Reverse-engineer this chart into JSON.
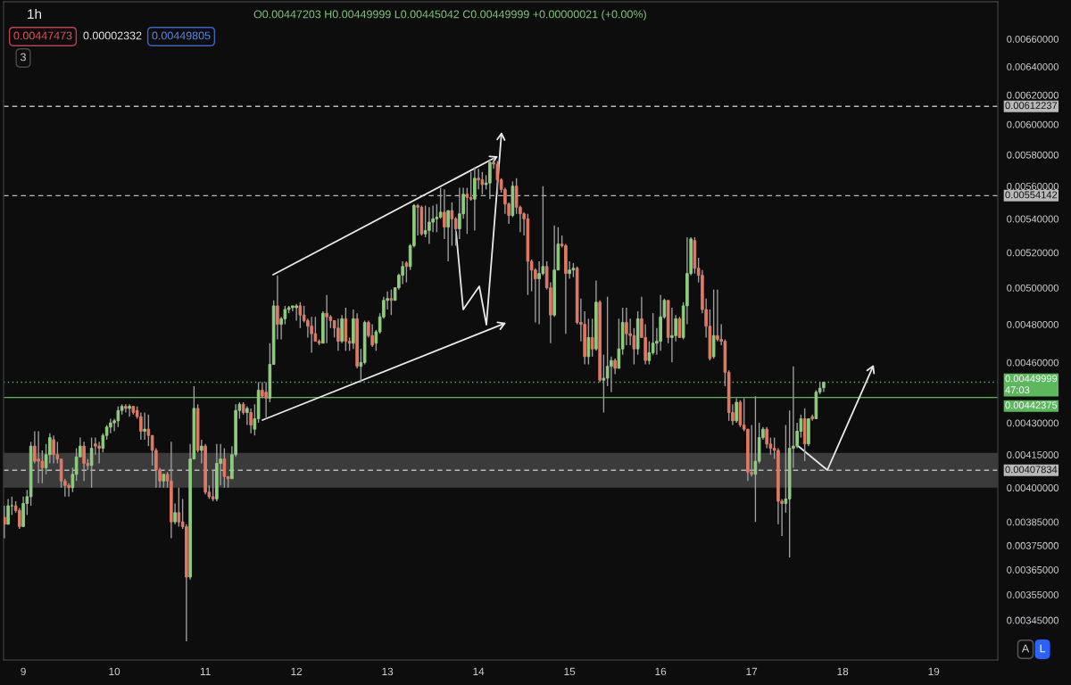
{
  "chart_data": {
    "type": "candlestick",
    "title": "1h",
    "subtitle": "O0.00447203 H0.00449999 L0.00445042 C0.00449999 +0.00000021 (+0.00%)",
    "x": [
      8.7917,
      8.8333,
      8.875,
      8.9167,
      8.9583,
      9,
      9.0417,
      9.0833,
      9.125,
      9.1667,
      9.2083,
      9.25,
      9.2917,
      9.3333,
      9.375,
      9.4167,
      9.4583,
      9.5,
      9.5417,
      9.5833,
      9.625,
      9.6667,
      9.7083,
      9.75,
      9.7917,
      9.8333,
      9.875,
      9.9167,
      9.9583,
      10,
      10.0417,
      10.0833,
      10.125,
      10.1667,
      10.2083,
      10.25,
      10.2917,
      10.3333,
      10.375,
      10.4167,
      10.4583,
      10.5,
      10.5417,
      10.5833,
      10.625,
      10.6667,
      10.7083,
      10.75,
      10.7917,
      10.8333,
      10.875,
      10.9167,
      10.9583,
      11,
      11.0417,
      11.0833,
      11.125,
      11.1667,
      11.2083,
      11.25,
      11.2917,
      11.3333,
      11.375,
      11.4167,
      11.4583,
      11.5,
      11.5417,
      11.5833,
      11.625,
      11.6667,
      11.7083,
      11.75,
      11.7917,
      11.8333,
      11.875,
      11.9167,
      11.9583,
      12,
      12.0417,
      12.0833,
      12.125,
      12.1667,
      12.2083,
      12.25,
      12.2917,
      12.3333,
      12.375,
      12.4167,
      12.4583,
      12.5,
      12.5417,
      12.5833,
      12.625,
      12.6667,
      12.7083,
      12.75,
      12.7917,
      12.8333,
      12.875,
      12.9167,
      12.9583,
      13,
      13.0417,
      13.0833,
      13.125,
      13.1667,
      13.2083,
      13.25,
      13.2917,
      13.3333,
      13.375,
      13.4167,
      13.4583,
      13.5,
      13.5417,
      13.5833,
      13.625,
      13.6667,
      13.7083,
      13.75,
      13.7917,
      13.8333,
      13.875,
      13.9167,
      13.9583,
      14,
      14.0417,
      14.0833,
      14.125,
      14.1667,
      14.2083,
      14.25,
      14.2917,
      14.3333,
      14.375,
      14.4167,
      14.4583,
      14.5,
      14.5417,
      14.5833,
      14.625,
      14.6667,
      14.7083,
      14.75,
      14.7917,
      14.8333,
      14.875,
      14.9167,
      14.9583,
      15,
      15.0417,
      15.0833,
      15.125,
      15.1667,
      15.2083,
      15.25,
      15.2917,
      15.3333,
      15.375,
      15.4167,
      15.4583,
      15.5,
      15.5417,
      15.5833,
      15.625,
      15.6667,
      15.7083,
      15.75,
      15.7917,
      15.8333,
      15.875,
      15.9167,
      15.9583,
      16,
      16.0417,
      16.0833,
      16.125,
      16.1667,
      16.2083,
      16.25,
      16.2917,
      16.3333,
      16.375,
      16.4167,
      16.4583,
      16.5,
      16.5417,
      16.5833,
      16.625,
      16.6667,
      16.7083,
      16.75,
      16.7917,
      16.8333,
      16.875,
      16.9167,
      16.9583,
      17,
      17.0417,
      17.0833,
      17.125,
      17.1667,
      17.2083,
      17.25,
      17.2917,
      17.3333,
      17.375,
      17.4167,
      17.4583,
      17.5,
      17.5417,
      17.5833,
      17.625,
      17.6667,
      17.7083,
      17.75,
      17.7917
    ],
    "ohlc": [
      [
        0.00387,
        0.00392,
        0.00378,
        0.00384
      ],
      [
        0.00384,
        0.00395,
        0.00384,
        0.00392
      ],
      [
        0.00392,
        0.00396,
        0.00388,
        0.00392
      ],
      [
        0.00392,
        0.00394,
        0.00389,
        0.0039
      ],
      [
        0.0039,
        0.00391,
        0.00382,
        0.00383
      ],
      [
        0.00383,
        0.00396,
        0.00383,
        0.00393
      ],
      [
        0.00393,
        0.00399,
        0.00388,
        0.00396
      ],
      [
        0.00396,
        0.00421,
        0.00392,
        0.00419
      ],
      [
        0.00419,
        0.00426,
        0.00411,
        0.00412
      ],
      [
        0.00413,
        0.00426,
        0.00402,
        0.00412
      ],
      [
        0.00412,
        0.00417,
        0.00402,
        0.00409
      ],
      [
        0.00409,
        0.0042,
        0.00406,
        0.00415
      ],
      [
        0.00415,
        0.00425,
        0.00411,
        0.00423
      ],
      [
        0.00422,
        0.00424,
        0.00411,
        0.00415
      ],
      [
        0.00415,
        0.00421,
        0.00411,
        0.00413
      ],
      [
        0.00413,
        0.00413,
        0.004,
        0.00403
      ],
      [
        0.00403,
        0.00404,
        0.00396,
        0.00401
      ],
      [
        0.00401,
        0.00402,
        0.00396,
        0.004
      ],
      [
        0.004,
        0.00409,
        0.00398,
        0.00406
      ],
      [
        0.00406,
        0.00418,
        0.00403,
        0.00414
      ],
      [
        0.00414,
        0.00423,
        0.00414,
        0.00419
      ],
      [
        0.00419,
        0.00421,
        0.00403,
        0.00411
      ],
      [
        0.00411,
        0.00413,
        0.00408,
        0.0041
      ],
      [
        0.0041,
        0.00423,
        0.004,
        0.00418
      ],
      [
        0.0042,
        0.00423,
        0.00415,
        0.00419
      ],
      [
        0.00419,
        0.00421,
        0.00411,
        0.00418
      ],
      [
        0.00418,
        0.00425,
        0.00416,
        0.00424
      ],
      [
        0.00424,
        0.00429,
        0.00422,
        0.00428
      ],
      [
        0.00428,
        0.00432,
        0.00425,
        0.0043
      ],
      [
        0.0043,
        0.00432,
        0.00426,
        0.00431
      ],
      [
        0.00431,
        0.00438,
        0.00428,
        0.00436
      ],
      [
        0.00436,
        0.00439,
        0.00434,
        0.00438
      ],
      [
        0.00438,
        0.00439,
        0.00435,
        0.00437
      ],
      [
        0.00437,
        0.00439,
        0.00433,
        0.00438
      ],
      [
        0.00438,
        0.00438,
        0.00434,
        0.00435
      ],
      [
        0.00436,
        0.00438,
        0.00432,
        0.00433
      ],
      [
        0.00433,
        0.00435,
        0.00422,
        0.00426
      ],
      [
        0.00426,
        0.00435,
        0.00422,
        0.00427
      ],
      [
        0.00427,
        0.00434,
        0.00419,
        0.00424
      ],
      [
        0.00424,
        0.00424,
        0.0041,
        0.00417
      ],
      [
        0.00417,
        0.00418,
        0.004,
        0.00408
      ],
      [
        0.00408,
        0.00409,
        0.004,
        0.00403
      ],
      [
        0.00403,
        0.00406,
        0.004,
        0.00406
      ],
      [
        0.00406,
        0.00407,
        0.004,
        0.00403
      ],
      [
        0.00403,
        0.00421,
        0.00378,
        0.00385
      ],
      [
        0.00385,
        0.00393,
        0.00384,
        0.00389
      ],
      [
        0.00389,
        0.004,
        0.00383,
        0.00385
      ],
      [
        0.00385,
        0.00395,
        0.00382,
        0.00383
      ],
      [
        0.00383,
        0.00384,
        0.00337,
        0.00362
      ],
      [
        0.00362,
        0.0042,
        0.00361,
        0.00413
      ],
      [
        0.00413,
        0.00448,
        0.00413,
        0.00437
      ],
      [
        0.00437,
        0.00439,
        0.00416,
        0.00417
      ],
      [
        0.00417,
        0.00422,
        0.00411,
        0.00419
      ],
      [
        0.00419,
        0.0042,
        0.00397,
        0.00398
      ],
      [
        0.00398,
        0.00401,
        0.00395,
        0.00396
      ],
      [
        0.00396,
        0.00408,
        0.00394,
        0.00395
      ],
      [
        0.00395,
        0.0042,
        0.00394,
        0.00411
      ],
      [
        0.00411,
        0.0042,
        0.00401,
        0.00413
      ],
      [
        0.00413,
        0.00418,
        0.004,
        0.00405
      ],
      [
        0.00405,
        0.00405,
        0.004,
        0.00404
      ],
      [
        0.00404,
        0.00419,
        0.00404,
        0.00415
      ],
      [
        0.00415,
        0.00439,
        0.00414,
        0.00436
      ],
      [
        0.00436,
        0.0044,
        0.00432,
        0.00439
      ],
      [
        0.00439,
        0.0044,
        0.00434,
        0.00435
      ],
      [
        0.00435,
        0.00438,
        0.00429,
        0.00437
      ],
      [
        0.00435,
        0.00437,
        0.00425,
        0.00429
      ],
      [
        0.00427,
        0.00439,
        0.00424,
        0.00432
      ],
      [
        0.00432,
        0.0045,
        0.0043,
        0.00446
      ],
      [
        0.00446,
        0.0045,
        0.00442,
        0.00443
      ],
      [
        0.00445,
        0.0045,
        0.00432,
        0.00442
      ],
      [
        0.00442,
        0.0047,
        0.0044,
        0.00459
      ],
      [
        0.00459,
        0.00493,
        0.00459,
        0.0049
      ],
      [
        0.0049,
        0.00507,
        0.00472,
        0.0048
      ],
      [
        0.0048,
        0.00484,
        0.00472,
        0.00483
      ],
      [
        0.00483,
        0.0049,
        0.0048,
        0.00488
      ],
      [
        0.00488,
        0.0049,
        0.00486,
        0.00489
      ],
      [
        0.00489,
        0.0049,
        0.00487,
        0.0049
      ],
      [
        0.00489,
        0.00491,
        0.00482,
        0.0049
      ],
      [
        0.0049,
        0.00492,
        0.00478,
        0.00485
      ],
      [
        0.00485,
        0.0049,
        0.00481,
        0.00482
      ],
      [
        0.00482,
        0.00483,
        0.00473,
        0.00479
      ],
      [
        0.00479,
        0.00484,
        0.00465,
        0.00475
      ],
      [
        0.00475,
        0.00484,
        0.00471,
        0.00471
      ],
      [
        0.00471,
        0.00472,
        0.00469,
        0.0047
      ],
      [
        0.0047,
        0.00487,
        0.0047,
        0.00486
      ],
      [
        0.00486,
        0.00496,
        0.0047,
        0.00484
      ],
      [
        0.00484,
        0.00485,
        0.00478,
        0.00482
      ],
      [
        0.00482,
        0.00482,
        0.00473,
        0.00478
      ],
      [
        0.00478,
        0.00483,
        0.00466,
        0.00471
      ],
      [
        0.00471,
        0.00485,
        0.0047,
        0.00483
      ],
      [
        0.00483,
        0.00489,
        0.00466,
        0.00471
      ],
      [
        0.00471,
        0.00473,
        0.00466,
        0.0047
      ],
      [
        0.0047,
        0.00488,
        0.00467,
        0.00483
      ],
      [
        0.00483,
        0.00486,
        0.00457,
        0.00458
      ],
      [
        0.00458,
        0.00467,
        0.0045,
        0.0046
      ],
      [
        0.0046,
        0.00482,
        0.00459,
        0.00481
      ],
      [
        0.00481,
        0.00482,
        0.00473,
        0.00474
      ],
      [
        0.00474,
        0.0048,
        0.00468,
        0.00469
      ],
      [
        0.0047,
        0.00477,
        0.00466,
        0.00476
      ],
      [
        0.00476,
        0.00486,
        0.00475,
        0.00484
      ],
      [
        0.00484,
        0.00495,
        0.00483,
        0.00493
      ],
      [
        0.00493,
        0.00498,
        0.00488,
        0.00494
      ],
      [
        0.00494,
        0.00499,
        0.00485,
        0.00493
      ],
      [
        0.00493,
        0.005,
        0.00493,
        0.005
      ],
      [
        0.005,
        0.00508,
        0.00499,
        0.00507
      ],
      [
        0.00507,
        0.00515,
        0.00502,
        0.00512
      ],
      [
        0.00514,
        0.00515,
        0.00503,
        0.00512
      ],
      [
        0.00512,
        0.00525,
        0.0051,
        0.00524
      ],
      [
        0.00524,
        0.00549,
        0.00523,
        0.00548
      ],
      [
        0.00548,
        0.00549,
        0.0053,
        0.00547
      ],
      [
        0.00547,
        0.00548,
        0.0053,
        0.00531
      ],
      [
        0.00531,
        0.00548,
        0.00529,
        0.00533
      ],
      [
        0.00533,
        0.00547,
        0.00525,
        0.00538
      ],
      [
        0.00538,
        0.00548,
        0.00532,
        0.0054
      ],
      [
        0.0054,
        0.00549,
        0.00532,
        0.00541
      ],
      [
        0.00541,
        0.00559,
        0.0054,
        0.00544
      ],
      [
        0.00544,
        0.00558,
        0.00528,
        0.00535
      ],
      [
        0.00535,
        0.00545,
        0.00515,
        0.00545
      ],
      [
        0.00545,
        0.0055,
        0.00524,
        0.0054
      ],
      [
        0.0054,
        0.00541,
        0.00524,
        0.00534
      ],
      [
        0.00534,
        0.00559,
        0.00528,
        0.00543
      ],
      [
        0.00543,
        0.00559,
        0.0054,
        0.00555
      ],
      [
        0.00555,
        0.00559,
        0.00531,
        0.00553
      ],
      [
        0.00553,
        0.00569,
        0.00551,
        0.00552
      ],
      [
        0.00552,
        0.00572,
        0.00533,
        0.00565
      ],
      [
        0.00565,
        0.00571,
        0.00558,
        0.00564
      ],
      [
        0.00564,
        0.00569,
        0.00555,
        0.00561
      ],
      [
        0.00561,
        0.00567,
        0.00558,
        0.00562
      ],
      [
        0.00562,
        0.00577,
        0.00552,
        0.00575
      ],
      [
        0.00575,
        0.00578,
        0.00571,
        0.00574
      ],
      [
        0.00574,
        0.00576,
        0.00555,
        0.00564
      ],
      [
        0.00564,
        0.00565,
        0.00556,
        0.00558
      ],
      [
        0.00558,
        0.00559,
        0.00543,
        0.00549
      ],
      [
        0.00549,
        0.0055,
        0.00537,
        0.00542
      ],
      [
        0.00542,
        0.00563,
        0.00541,
        0.0056
      ],
      [
        0.0056,
        0.00565,
        0.00543,
        0.00547
      ],
      [
        0.00547,
        0.00548,
        0.00532,
        0.00543
      ],
      [
        0.00543,
        0.00544,
        0.0053,
        0.0054
      ],
      [
        0.0054,
        0.00543,
        0.00496,
        0.00515
      ],
      [
        0.00515,
        0.00516,
        0.00498,
        0.0051
      ],
      [
        0.0051,
        0.00511,
        0.00481,
        0.00505
      ],
      [
        0.00505,
        0.00515,
        0.0048,
        0.00508
      ],
      [
        0.00508,
        0.0056,
        0.00507,
        0.00512
      ],
      [
        0.00512,
        0.00515,
        0.00499,
        0.005
      ],
      [
        0.005,
        0.00503,
        0.0047,
        0.00485
      ],
      [
        0.00485,
        0.00536,
        0.00484,
        0.0051
      ],
      [
        0.0051,
        0.00535,
        0.0051,
        0.00525
      ],
      [
        0.00525,
        0.0053,
        0.00523,
        0.00524
      ],
      [
        0.00524,
        0.00525,
        0.00475,
        0.00508
      ],
      [
        0.00508,
        0.00515,
        0.00505,
        0.0051
      ],
      [
        0.0051,
        0.00514,
        0.00506,
        0.00511
      ],
      [
        0.00511,
        0.00512,
        0.0048,
        0.00481
      ],
      [
        0.00481,
        0.00494,
        0.00471,
        0.0048
      ],
      [
        0.0048,
        0.00487,
        0.00459,
        0.00463
      ],
      [
        0.00463,
        0.00483,
        0.00459,
        0.00473
      ],
      [
        0.00473,
        0.00483,
        0.00463,
        0.00467
      ],
      [
        0.00467,
        0.00504,
        0.00466,
        0.00492
      ],
      [
        0.00492,
        0.00493,
        0.0045,
        0.00451
      ],
      [
        0.00451,
        0.00464,
        0.00435,
        0.00452
      ],
      [
        0.00452,
        0.00495,
        0.00448,
        0.00458
      ],
      [
        0.00458,
        0.00463,
        0.00445,
        0.00461
      ],
      [
        0.00461,
        0.00462,
        0.00454,
        0.00457
      ],
      [
        0.00457,
        0.00483,
        0.00457,
        0.00467
      ],
      [
        0.00467,
        0.00489,
        0.00464,
        0.00481
      ],
      [
        0.00481,
        0.00489,
        0.00469,
        0.00475
      ],
      [
        0.00475,
        0.00483,
        0.00469,
        0.00474
      ],
      [
        0.00474,
        0.00478,
        0.00459,
        0.00467
      ],
      [
        0.00467,
        0.00487,
        0.00464,
        0.00483
      ],
      [
        0.00483,
        0.00495,
        0.00473,
        0.00473
      ],
      [
        0.00473,
        0.0048,
        0.00459,
        0.00461
      ],
      [
        0.00461,
        0.00471,
        0.00459,
        0.00465
      ],
      [
        0.00465,
        0.00486,
        0.00464,
        0.0047
      ],
      [
        0.0047,
        0.00478,
        0.00464,
        0.00471
      ],
      [
        0.00471,
        0.00496,
        0.00466,
        0.00484
      ],
      [
        0.00484,
        0.00494,
        0.00483,
        0.00493
      ],
      [
        0.00493,
        0.00493,
        0.0047,
        0.00473
      ],
      [
        0.00473,
        0.00489,
        0.0046,
        0.00474
      ],
      [
        0.00474,
        0.00485,
        0.00471,
        0.00483
      ],
      [
        0.00483,
        0.00484,
        0.00473,
        0.00473
      ],
      [
        0.00473,
        0.00492,
        0.00472,
        0.0049
      ],
      [
        0.0049,
        0.00529,
        0.0048,
        0.00508
      ],
      [
        0.00508,
        0.00529,
        0.00507,
        0.00528
      ],
      [
        0.00527,
        0.00529,
        0.00508,
        0.00511
      ],
      [
        0.00511,
        0.00517,
        0.00503,
        0.00507
      ],
      [
        0.00507,
        0.0051,
        0.00486,
        0.00488
      ],
      [
        0.00488,
        0.00494,
        0.00473,
        0.00479
      ],
      [
        0.00479,
        0.00488,
        0.00461,
        0.00462
      ],
      [
        0.00463,
        0.00499,
        0.00462,
        0.00474
      ],
      [
        0.00474,
        0.00499,
        0.00471,
        0.00472
      ],
      [
        0.00472,
        0.0048,
        0.00469,
        0.00471
      ],
      [
        0.00471,
        0.00472,
        0.00448,
        0.00455
      ],
      [
        0.00455,
        0.00456,
        0.00431,
        0.00435
      ],
      [
        0.00435,
        0.00439,
        0.00429,
        0.00431
      ],
      [
        0.00431,
        0.00442,
        0.0043,
        0.0044
      ],
      [
        0.0044,
        0.00441,
        0.00428,
        0.00429
      ],
      [
        0.00429,
        0.00442,
        0.00426,
        0.00427
      ],
      [
        0.00427,
        0.00427,
        0.00403,
        0.00407
      ],
      [
        0.00407,
        0.00429,
        0.00405,
        0.00406
      ],
      [
        0.00406,
        0.00443,
        0.00385,
        0.00412
      ],
      [
        0.00412,
        0.0043,
        0.00411,
        0.00423
      ],
      [
        0.00423,
        0.00428,
        0.00422,
        0.00427
      ],
      [
        0.00427,
        0.00428,
        0.00418,
        0.0042
      ],
      [
        0.0042,
        0.00423,
        0.00415,
        0.00418
      ],
      [
        0.00418,
        0.00423,
        0.00413,
        0.00417
      ],
      [
        0.00417,
        0.00418,
        0.00384,
        0.00394
      ],
      [
        0.00394,
        0.00395,
        0.00379,
        0.00393
      ],
      [
        0.00393,
        0.00429,
        0.00389,
        0.00395
      ],
      [
        0.00395,
        0.00436,
        0.0037,
        0.00418
      ],
      [
        0.00418,
        0.00458,
        0.00409,
        0.00419
      ],
      [
        0.00419,
        0.0043,
        0.00418,
        0.00426
      ],
      [
        0.00426,
        0.00434,
        0.00423,
        0.00432
      ],
      [
        0.00432,
        0.00437,
        0.00412,
        0.0042
      ],
      [
        0.0042,
        0.00432,
        0.00419,
        0.00432
      ],
      [
        0.00433,
        0.00434,
        0.00431,
        0.00432
      ],
      [
        0.00432,
        0.00446,
        0.00432,
        0.00445
      ],
      [
        0.00445,
        0.0045,
        0.00444,
        0.00447
      ],
      [
        0.00447203,
        0.00449999,
        0.00445042,
        0.00449999
      ]
    ],
    "colors": [
      "#e07a64",
      "#8fcc7f",
      "#8fcc7f",
      "#e07a64",
      "#e07a64",
      "#8fcc7f",
      "#8fcc7f",
      "#8fcc7f",
      "#e07a64",
      "#e07a64",
      "#e07a64",
      "#8fcc7f",
      "#8fcc7f",
      "#e07a64",
      "#e07a64",
      "#e07a64",
      "#e07a64",
      "#e07a64",
      "#8fcc7f",
      "#8fcc7f",
      "#8fcc7f",
      "#e07a64",
      "#e07a64",
      "#8fcc7f",
      "#e07a64",
      "#e07a64",
      "#8fcc7f",
      "#8fcc7f",
      "#8fcc7f",
      "#8fcc7f",
      "#8fcc7f",
      "#8fcc7f",
      "#e07a64",
      "#8fcc7f",
      "#e07a64",
      "#e07a64",
      "#e07a64",
      "#8fcc7f",
      "#e07a64",
      "#e07a64",
      "#e07a64",
      "#e07a64",
      "#8fcc7f",
      "#e07a64",
      "#e07a64",
      "#8fcc7f",
      "#e07a64",
      "#e07a64",
      "#e07a64",
      "#8fcc7f",
      "#8fcc7f",
      "#e07a64",
      "#8fcc7f",
      "#e07a64",
      "#e07a64",
      "#e07a64",
      "#8fcc7f",
      "#8fcc7f",
      "#e07a64",
      "#e07a64",
      "#8fcc7f",
      "#8fcc7f",
      "#8fcc7f",
      "#e07a64",
      "#8fcc7f",
      "#e07a64",
      "#8fcc7f",
      "#8fcc7f",
      "#e07a64",
      "#e07a64",
      "#8fcc7f",
      "#8fcc7f",
      "#e07a64",
      "#8fcc7f",
      "#8fcc7f",
      "#8fcc7f",
      "#8fcc7f",
      "#8fcc7f",
      "#e07a64",
      "#e07a64",
      "#e07a64",
      "#e07a64",
      "#e07a64",
      "#e07a64",
      "#8fcc7f",
      "#e07a64",
      "#e07a64",
      "#e07a64",
      "#e07a64",
      "#8fcc7f",
      "#e07a64",
      "#e07a64",
      "#8fcc7f",
      "#e07a64",
      "#8fcc7f",
      "#8fcc7f",
      "#e07a64",
      "#e07a64",
      "#8fcc7f",
      "#8fcc7f",
      "#8fcc7f",
      "#8fcc7f",
      "#e07a64",
      "#8fcc7f",
      "#8fcc7f",
      "#8fcc7f",
      "#e07a64",
      "#8fcc7f",
      "#8fcc7f",
      "#e07a64",
      "#e07a64",
      "#8fcc7f",
      "#8fcc7f",
      "#8fcc7f",
      "#8fcc7f",
      "#8fcc7f",
      "#e07a64",
      "#8fcc7f",
      "#e07a64",
      "#e07a64",
      "#8fcc7f",
      "#8fcc7f",
      "#e07a64",
      "#e07a64",
      "#8fcc7f",
      "#e07a64",
      "#e07a64",
      "#8fcc7f",
      "#8fcc7f",
      "#e07a64",
      "#e07a64",
      "#e07a64",
      "#e07a64",
      "#e07a64",
      "#8fcc7f",
      "#e07a64",
      "#e07a64",
      "#e07a64",
      "#e07a64",
      "#e07a64",
      "#e07a64",
      "#8fcc7f",
      "#8fcc7f",
      "#e07a64",
      "#e07a64",
      "#8fcc7f",
      "#8fcc7f",
      "#e07a64",
      "#e07a64",
      "#8fcc7f",
      "#8fcc7f",
      "#e07a64",
      "#e07a64",
      "#e07a64",
      "#8fcc7f",
      "#e07a64",
      "#8fcc7f",
      "#e07a64",
      "#8fcc7f",
      "#8fcc7f",
      "#8fcc7f",
      "#e07a64",
      "#8fcc7f",
      "#8fcc7f",
      "#e07a64",
      "#e07a64",
      "#e07a64",
      "#8fcc7f",
      "#e07a64",
      "#e07a64",
      "#8fcc7f",
      "#8fcc7f",
      "#8fcc7f",
      "#8fcc7f",
      "#8fcc7f",
      "#e07a64",
      "#8fcc7f",
      "#8fcc7f",
      "#e07a64",
      "#8fcc7f",
      "#8fcc7f",
      "#8fcc7f",
      "#e07a64",
      "#e07a64",
      "#e07a64",
      "#e07a64",
      "#e07a64",
      "#8fcc7f",
      "#e07a64",
      "#e07a64",
      "#e07a64",
      "#e07a64",
      "#e07a64",
      "#8fcc7f",
      "#e07a64",
      "#e07a64",
      "#e07a64",
      "#e07a64",
      "#8fcc7f",
      "#8fcc7f",
      "#8fcc7f",
      "#e07a64",
      "#e07a64",
      "#e07a64",
      "#e07a64",
      "#e07a64",
      "#8fcc7f",
      "#8fcc7f",
      "#8fcc7f",
      "#8fcc7f",
      "#8fcc7f",
      "#e07a64",
      "#8fcc7f",
      "#e07a64",
      "#8fcc7f",
      "#8fcc7f",
      "#8fcc7f"
    ],
    "xlim": [
      8.7833,
      19.7042
    ],
    "xticks": [
      9,
      10,
      11,
      12,
      13,
      14,
      15,
      16,
      17,
      18,
      19
    ],
    "ylim": [
      0.0033,
      0.00688
    ],
    "log": true,
    "yticks": [
      {
        "value": 0.0066,
        "label": "0.00660000"
      },
      {
        "value": 0.0064,
        "label": "0.00640000"
      },
      {
        "value": 0.0062,
        "label": "0.00620000"
      },
      {
        "value": 0.006,
        "label": "0.00600000"
      },
      {
        "value": 0.0058,
        "label": "0.00580000"
      },
      {
        "value": 0.0056,
        "label": "0.00560000"
      },
      {
        "value": 0.0054,
        "label": "0.00540000"
      },
      {
        "value": 0.0052,
        "label": "0.00520000"
      },
      {
        "value": 0.005,
        "label": "0.00500000"
      },
      {
        "value": 0.0048,
        "label": "0.00480000"
      },
      {
        "value": 0.0046,
        "label": "0.00460000"
      },
      {
        "value": 0.0043,
        "label": "0.00430000"
      },
      {
        "value": 0.00415,
        "label": "0.00415000"
      },
      {
        "value": 0.004,
        "label": "0.00400000"
      },
      {
        "value": 0.00385,
        "label": "0.00385000"
      },
      {
        "value": 0.00375,
        "label": "0.00375000"
      },
      {
        "value": 0.00365,
        "label": "0.00365000"
      },
      {
        "value": 0.00355,
        "label": "0.00355000"
      },
      {
        "value": 0.00345,
        "label": "0.00345000"
      }
    ],
    "ref_lines": [
      {
        "axis": "y",
        "value": 0.00612237,
        "label": "0.00612237",
        "color": "#b9b9b9",
        "line_style": "dashed"
      },
      {
        "axis": "y",
        "value": 0.00554142,
        "label": "0.00554142",
        "color": "#b9b9b9",
        "line_style": "dashed"
      },
      {
        "axis": "y",
        "value": 0.00407834,
        "label": "0.00407834",
        "color": "#b9b9b9",
        "line_style": "dashed"
      },
      {
        "axis": "y",
        "value": 0.00449999,
        "label": "0.00449999\n47:03",
        "color": "#5cb85c",
        "line_style": "dotted"
      },
      {
        "axis": "y",
        "value": 0.00442375,
        "label": "0.00442375",
        "color": "#5cb85c",
        "line_style": "solid"
      }
    ],
    "bands": [
      {
        "axis": "y",
        "from": 0.004,
        "to": 0.004158,
        "color": "#3b3b3b"
      }
    ],
    "annotations": [
      "0.00447473",
      "0.00002332",
      "0.00449805",
      "3",
      "A",
      "L"
    ]
  }
}
